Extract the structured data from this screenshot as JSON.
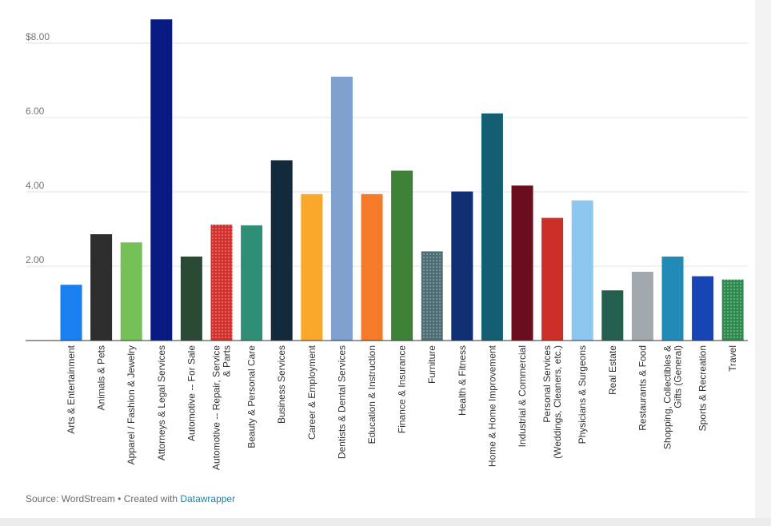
{
  "chart_data": {
    "type": "bar",
    "title": "",
    "xlabel": "",
    "ylabel": "",
    "ylim": [
      0,
      8.8
    ],
    "y_ticks": [
      2,
      4,
      6,
      8
    ],
    "y_tick_labels": [
      "2.00",
      "4.00",
      "6.00",
      "$8.00"
    ],
    "grid": true,
    "categories": [
      "Arts & Entertainment",
      "Animals & Pets",
      "Apparel / Fashion & Jewelry",
      "Attorneys & Legal Services",
      "Automotive -- For Sale",
      "Automotive -- Repair, Service & Parts",
      "Beauty & Personal Care",
      "Business Services",
      "Career & Employment",
      "Dentists & Dental Services",
      "Education & Instruction",
      "Finance & Insurance",
      "Furniture",
      "Health & Fitness",
      "Home & Home Improvement",
      "Industrial & Commercial",
      "Personal Services (Weddings, Cleaners, etc.)",
      "Physicians & Surgeons",
      "Real Estate",
      "Restaurants & Food",
      "Shopping, Collectibles & Gifts (General)",
      "Sports & Recreation",
      "Travel"
    ],
    "category_label_lines": [
      [
        "Arts & Entertainment"
      ],
      [
        "Animals & Pets"
      ],
      [
        "Apparel / Fashion & Jewelry"
      ],
      [
        "Attorneys & Legal Services"
      ],
      [
        "Automotive -- For Sale"
      ],
      [
        "Automotive -- Repair, Service",
        "& Parts"
      ],
      [
        "Beauty & Personal Care"
      ],
      [
        "Business Services"
      ],
      [
        "Career & Employment"
      ],
      [
        "Dentists & Dental Services"
      ],
      [
        "Education & Instruction"
      ],
      [
        "Finance & Insurance"
      ],
      [
        "Furniture"
      ],
      [
        "Health & Fitness"
      ],
      [
        "Home & Home Improvement"
      ],
      [
        "Industrial & Commercial"
      ],
      [
        "Personal Services",
        "(Weddings, Cleaners, etc.)"
      ],
      [
        "Physicians & Surgeons"
      ],
      [
        "Real Estate"
      ],
      [
        "Restaurants & Food"
      ],
      [
        "Shopping, Collectibles &",
        "Gifts (General)"
      ],
      [
        "Sports & Recreation"
      ],
      [
        "Travel"
      ]
    ],
    "values": [
      1.5,
      2.86,
      2.64,
      8.64,
      2.26,
      3.12,
      3.1,
      4.85,
      3.94,
      7.1,
      3.94,
      4.57,
      2.4,
      4.01,
      6.11,
      4.17,
      3.3,
      3.77,
      1.35,
      1.85,
      2.26,
      1.73,
      1.64
    ],
    "colors": [
      "#1a7fef",
      "#2d2d2d",
      "#76c157",
      "#081b82",
      "#2a4a35",
      "#d3312b",
      "#2e8f76",
      "#132a3d",
      "#f9a82c",
      "#7f9fcf",
      "#f57a2a",
      "#3d8237",
      "#4c6d74",
      "#0f2f72",
      "#145e72",
      "#6b0d1e",
      "#cc2f28",
      "#8dc6ee",
      "#245e4e",
      "#a1a8ae",
      "#228ab7",
      "#1745b5",
      "#2f8a4f"
    ],
    "dotted": [
      false,
      false,
      false,
      false,
      false,
      true,
      false,
      false,
      false,
      false,
      false,
      false,
      true,
      false,
      false,
      false,
      false,
      false,
      false,
      false,
      false,
      false,
      true
    ]
  },
  "footer": {
    "source_text": "Source: WordStream • Created with ",
    "link_text": "Datawrapper"
  }
}
